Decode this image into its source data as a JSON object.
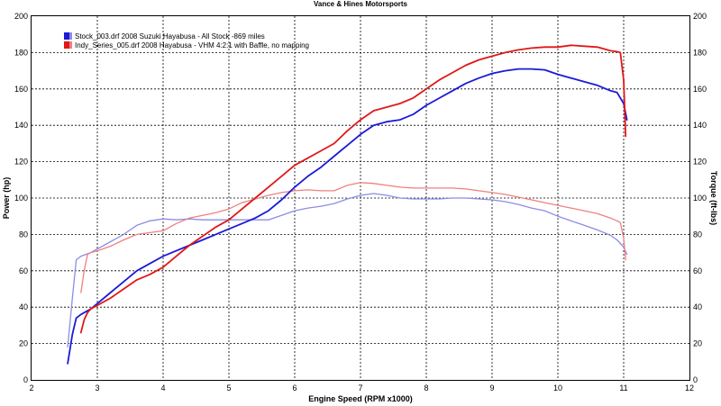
{
  "chart_data": {
    "type": "line",
    "title": "Vance & Hines Motorsports",
    "xlabel": "Engine Speed (RPM x1000)",
    "ylabel_left": "Power (hp)",
    "ylabel_right": "Torque (ft-lbs)",
    "xlim": [
      2,
      12
    ],
    "ylim": [
      0,
      200
    ],
    "y2lim": [
      0,
      200
    ],
    "x_ticks": [
      "2",
      "3",
      "4",
      "5",
      "6",
      "7",
      "8",
      "9",
      "10",
      "11",
      "12"
    ],
    "y_ticks": [
      "0",
      "20",
      "40",
      "60",
      "80",
      "100",
      "120",
      "140",
      "160",
      "180",
      "200"
    ],
    "y2_ticks": [
      "0",
      "20",
      "40",
      "60",
      "80",
      "100",
      "120",
      "140",
      "160",
      "180",
      "200"
    ],
    "grid": true,
    "legend_position": "top-left",
    "legend": [
      {
        "label": "Stock_003.drf 2008 Suzuki Hayabusa - All Stock -869 miles",
        "color": "#1a1ad8"
      },
      {
        "label": "Indy_Series_005.drf 2008 Hayabusa - VHM 4:2:1 with Baffle, no mapping",
        "color": "#e01818"
      }
    ],
    "series": [
      {
        "name": "Stock_003.drf 2008 Suzuki Hayabusa - All Stock -869 miles",
        "measure": "power",
        "axis": "left",
        "color": "#1a1ad8",
        "x": [
          2.55,
          2.62,
          2.68,
          2.75,
          2.9,
          3.0,
          3.2,
          3.4,
          3.6,
          3.8,
          4.0,
          4.2,
          4.4,
          4.6,
          4.8,
          5.0,
          5.2,
          5.4,
          5.6,
          5.8,
          6.0,
          6.2,
          6.4,
          6.6,
          6.8,
          7.0,
          7.2,
          7.4,
          7.6,
          7.8,
          8.0,
          8.2,
          8.4,
          8.6,
          8.8,
          9.0,
          9.2,
          9.4,
          9.6,
          9.8,
          10.0,
          10.2,
          10.4,
          10.6,
          10.8,
          10.9,
          11.0,
          11.05
        ],
        "values": [
          9,
          25,
          34,
          36,
          39,
          42,
          48,
          54,
          60,
          64,
          68,
          71,
          74,
          77,
          80,
          83,
          86,
          89,
          93,
          99,
          106,
          112,
          117,
          123,
          129,
          135,
          140,
          142,
          143,
          146,
          151,
          155,
          159,
          163,
          166,
          168.5,
          170,
          171,
          171,
          170.5,
          168,
          166,
          164,
          162,
          159,
          158,
          152,
          143
        ]
      },
      {
        "name": "Indy_Series_005.drf 2008 Hayabusa - VHM 4:2:1 with Baffle, no mapping",
        "measure": "power",
        "axis": "left",
        "color": "#e01818",
        "x": [
          2.75,
          2.8,
          2.85,
          2.9,
          3.0,
          3.2,
          3.4,
          3.6,
          3.8,
          4.0,
          4.2,
          4.4,
          4.6,
          4.8,
          5.0,
          5.2,
          5.4,
          5.6,
          5.8,
          6.0,
          6.2,
          6.4,
          6.6,
          6.8,
          7.0,
          7.2,
          7.4,
          7.6,
          7.8,
          8.0,
          8.2,
          8.4,
          8.6,
          8.8,
          9.0,
          9.2,
          9.4,
          9.6,
          9.8,
          10.0,
          10.2,
          10.4,
          10.6,
          10.8,
          10.9,
          10.95,
          11.0,
          11.03
        ],
        "values": [
          26,
          33,
          37,
          39,
          41,
          45,
          50,
          55,
          58,
          62,
          68,
          74,
          79,
          84,
          88,
          94,
          100,
          106,
          112,
          118,
          122,
          126,
          130,
          137,
          143,
          148,
          150,
          152,
          155,
          160,
          165,
          169,
          173,
          176,
          178,
          180,
          181.5,
          182.5,
          183,
          183,
          184,
          183.5,
          183,
          181,
          180.5,
          180,
          165,
          134
        ]
      },
      {
        "name": "Stock_003.drf 2008 Suzuki Hayabusa - All Stock -869 miles",
        "measure": "torque",
        "axis": "right",
        "color": "#8c8ce6",
        "x": [
          2.55,
          2.62,
          2.68,
          2.75,
          2.9,
          3.0,
          3.2,
          3.4,
          3.6,
          3.8,
          4.0,
          4.2,
          4.4,
          4.6,
          4.8,
          5.0,
          5.2,
          5.4,
          5.6,
          5.8,
          6.0,
          6.2,
          6.4,
          6.6,
          6.8,
          7.0,
          7.2,
          7.4,
          7.6,
          7.8,
          8.0,
          8.2,
          8.4,
          8.6,
          8.8,
          9.0,
          9.2,
          9.4,
          9.6,
          9.8,
          10.0,
          10.2,
          10.4,
          10.6,
          10.8,
          10.9,
          11.0,
          11.05
        ],
        "values": [
          18,
          45,
          66,
          68,
          70,
          72,
          76,
          80,
          85,
          87.5,
          88.5,
          88,
          88.5,
          88,
          88,
          88,
          88,
          88,
          88,
          90.5,
          93,
          94.5,
          95.5,
          97,
          99.5,
          101.5,
          102.5,
          101.5,
          100,
          99.5,
          99.5,
          99.5,
          100,
          100,
          99.5,
          99,
          98,
          96.5,
          94.5,
          93,
          90,
          87.5,
          85,
          82.5,
          79.5,
          77,
          73,
          69
        ]
      },
      {
        "name": "Indy_Series_005.drf 2008 Hayabusa - VHM 4:2:1 with Baffle, no mapping",
        "measure": "torque",
        "axis": "right",
        "color": "#ee8080",
        "x": [
          2.75,
          2.8,
          2.85,
          2.9,
          3.0,
          3.2,
          3.4,
          3.6,
          3.8,
          4.0,
          4.2,
          4.4,
          4.6,
          4.8,
          5.0,
          5.2,
          5.4,
          5.6,
          5.8,
          6.0,
          6.2,
          6.4,
          6.6,
          6.8,
          7.0,
          7.2,
          7.4,
          7.6,
          7.8,
          8.0,
          8.2,
          8.4,
          8.6,
          8.8,
          9.0,
          9.2,
          9.4,
          9.6,
          9.8,
          10.0,
          10.2,
          10.4,
          10.6,
          10.8,
          10.9,
          10.95,
          11.0,
          11.03
        ],
        "values": [
          48,
          60,
          69,
          70,
          71,
          73.5,
          77,
          80,
          81,
          82,
          86,
          89,
          90.5,
          92,
          94,
          97.5,
          99.5,
          101.5,
          103,
          104,
          104.5,
          104,
          104,
          107,
          108.5,
          108,
          107,
          106,
          105.5,
          105.5,
          105.5,
          105.5,
          105,
          104,
          103,
          102,
          100.5,
          99,
          97.5,
          96,
          94.5,
          93,
          91.5,
          89,
          87.5,
          86.5,
          78,
          66
        ]
      }
    ]
  }
}
